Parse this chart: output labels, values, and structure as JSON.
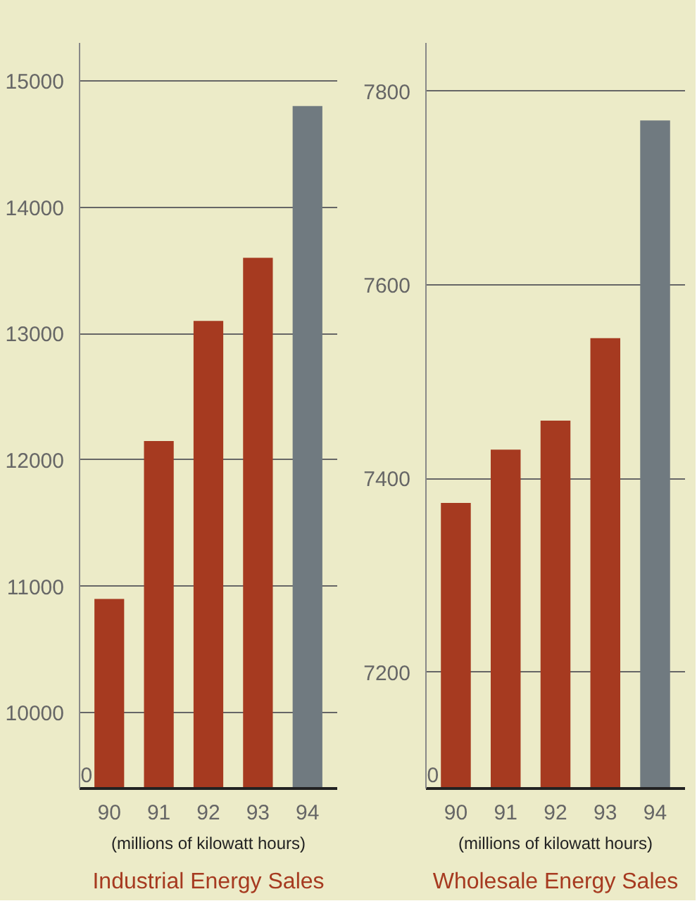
{
  "chart_data": [
    {
      "type": "bar",
      "title": "Industrial Energy Sales",
      "subtitle": "(millions of kilowatt hours)",
      "categories": [
        "90",
        "91",
        "92",
        "93",
        "94"
      ],
      "values": [
        10900,
        12150,
        13100,
        13600,
        14800
      ],
      "colors": [
        "#a63a20",
        "#a63a20",
        "#a63a20",
        "#a63a20",
        "#707a80"
      ],
      "ylim": [
        9400,
        15300
      ],
      "yticks": [
        10000,
        11000,
        12000,
        13000,
        14000,
        15000
      ],
      "grid": "y",
      "annotations": [
        "0"
      ]
    },
    {
      "type": "bar",
      "title": "Wholesale Energy Sales",
      "subtitle": "(millions of kilowatt hours)",
      "categories": [
        "90",
        "91",
        "92",
        "93",
        "94"
      ],
      "values": [
        7375,
        7430,
        7460,
        7545,
        7770
      ],
      "colors": [
        "#a63a20",
        "#a63a20",
        "#a63a20",
        "#a63a20",
        "#707a80"
      ],
      "ylim": [
        7080,
        7850
      ],
      "yticks": [
        7200,
        7400,
        7600,
        7800
      ],
      "grid": "y",
      "annotations": [
        "0"
      ]
    }
  ]
}
